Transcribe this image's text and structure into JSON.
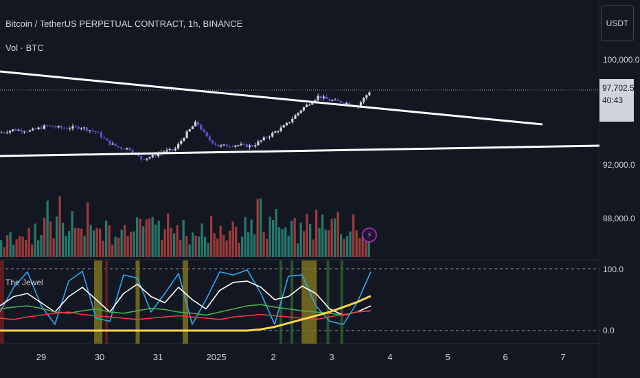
{
  "header": {
    "symbol_title": "Bitcoin / TetherUS PERPETUAL CONTRACT, 1h, BINANCE",
    "volume_legend": "Vol · BTC"
  },
  "price_axis": {
    "currency_button": "USDT",
    "current_price": "97,702.5",
    "countdown": "40:43",
    "ticks": [
      {
        "label": "100,000.0",
        "value": 100000
      },
      {
        "label": "92,000.0",
        "value": 92000
      },
      {
        "label": "88,000.0",
        "value": 88000
      }
    ]
  },
  "indicator": {
    "name": "The Jewel",
    "ticks": [
      {
        "label": "100.0",
        "value": 100
      },
      {
        "label": "0.0",
        "value": 0
      }
    ]
  },
  "time_axis": {
    "ticks": [
      "29",
      "30",
      "31",
      "2025",
      "2",
      "3",
      "4",
      "5",
      "6",
      "7"
    ]
  },
  "colors": {
    "background": "#131722",
    "candle_up": "#d1d4dc",
    "candle_down": "#5b4fc4",
    "vol_up": "#26786a",
    "vol_down": "#9a3b3b",
    "trendline": "#ffffff",
    "osc_blue": "#2fa8f0",
    "osc_white": "#ffffff",
    "osc_green": "#4caf50",
    "osc_red": "#f23645",
    "osc_yellow": "#ffd54f",
    "highlight_yellow": "#8a7d1e",
    "highlight_green": "#2e6b2e",
    "highlight_red": "#7a1f1f"
  },
  "chart_data": {
    "type": "candlestick",
    "title": "Bitcoin / TetherUS PERPETUAL CONTRACT, 1h, BINANCE",
    "timeframe": "1h",
    "x_ticks": [
      "29",
      "30",
      "31",
      "2025",
      "2",
      "3",
      "4",
      "5",
      "6",
      "7"
    ],
    "price_ylim": [
      86000,
      102000
    ],
    "last_price": 97702.5,
    "price_path": [
      {
        "day": 28.0,
        "price": 94300
      },
      {
        "day": 28.3,
        "price": 94600
      },
      {
        "day": 28.6,
        "price": 94500
      },
      {
        "day": 28.9,
        "price": 94900
      },
      {
        "day": 29.2,
        "price": 94700
      },
      {
        "day": 29.5,
        "price": 94800
      },
      {
        "day": 29.8,
        "price": 94400
      },
      {
        "day": 30.0,
        "price": 93600
      },
      {
        "day": 30.2,
        "price": 93200
      },
      {
        "day": 30.4,
        "price": 93100
      },
      {
        "day": 30.6,
        "price": 92300
      },
      {
        "day": 30.8,
        "price": 92500
      },
      {
        "day": 31.0,
        "price": 92900
      },
      {
        "day": 31.2,
        "price": 93000
      },
      {
        "day": 31.4,
        "price": 94200
      },
      {
        "day": 31.6,
        "price": 95200
      },
      {
        "day": 31.8,
        "price": 93900
      },
      {
        "day": 32.0,
        "price": 93300
      },
      {
        "day": 32.3,
        "price": 93400
      },
      {
        "day": 32.6,
        "price": 93300
      },
      {
        "day": 32.9,
        "price": 94100
      },
      {
        "day": 33.2,
        "price": 94900
      },
      {
        "day": 33.5,
        "price": 96200
      },
      {
        "day": 33.8,
        "price": 97200
      },
      {
        "day": 34.0,
        "price": 96900
      },
      {
        "day": 34.3,
        "price": 96700
      },
      {
        "day": 34.5,
        "price": 96400
      },
      {
        "day": 34.75,
        "price": 97702.5
      }
    ],
    "volume": [
      30,
      25,
      40,
      35,
      28,
      45,
      30,
      38,
      50,
      42,
      35,
      60,
      48,
      40,
      55,
      70,
      45,
      38,
      52,
      80,
      65,
      50,
      42,
      90,
      75,
      55,
      48,
      62,
      85,
      70,
      58,
      45,
      38,
      40,
      52,
      48,
      35,
      42,
      55,
      60,
      50,
      45,
      65,
      72,
      58,
      48,
      40,
      55,
      95,
      68,
      52,
      45,
      38,
      42,
      60,
      55,
      48,
      40,
      35,
      50
    ],
    "indicator": {
      "name": "The Jewel",
      "ylim": [
        0,
        100
      ],
      "levels": [
        100,
        0
      ],
      "series": [
        {
          "color": "#2fa8f0",
          "values": [
            30,
            70,
            95,
            40,
            10,
            80,
            96,
            20,
            15,
            90,
            85,
            30,
            60,
            92,
            10,
            50,
            95,
            90,
            98,
            60,
            10,
            88,
            90,
            40,
            15,
            10,
            45,
            95
          ]
        },
        {
          "color": "#ffffff",
          "values": [
            40,
            55,
            60,
            45,
            30,
            55,
            70,
            50,
            30,
            60,
            75,
            55,
            45,
            70,
            50,
            35,
            65,
            78,
            80,
            70,
            50,
            55,
            72,
            60,
            35,
            25,
            30,
            40
          ]
        },
        {
          "color": "#4caf50",
          "values": [
            35,
            38,
            40,
            36,
            30,
            28,
            32,
            35,
            30,
            28,
            32,
            36,
            34,
            30,
            28,
            25,
            30,
            35,
            40,
            42,
            38,
            35,
            32,
            30,
            28,
            25,
            30,
            32
          ]
        },
        {
          "color": "#f23645",
          "values": [
            20,
            18,
            22,
            25,
            28,
            30,
            26,
            24,
            22,
            20,
            18,
            20,
            22,
            24,
            22,
            20,
            18,
            22,
            24,
            26,
            24,
            22,
            20,
            18,
            22,
            26,
            30,
            32
          ]
        },
        {
          "color": "#ffd54f",
          "values": [
            0,
            0,
            0,
            0,
            0,
            0,
            0,
            0,
            0,
            0,
            0,
            0,
            0,
            0,
            0,
            0,
            0,
            0,
            0,
            2,
            6,
            12,
            18,
            24,
            30,
            38,
            46,
            56
          ]
        }
      ]
    }
  }
}
